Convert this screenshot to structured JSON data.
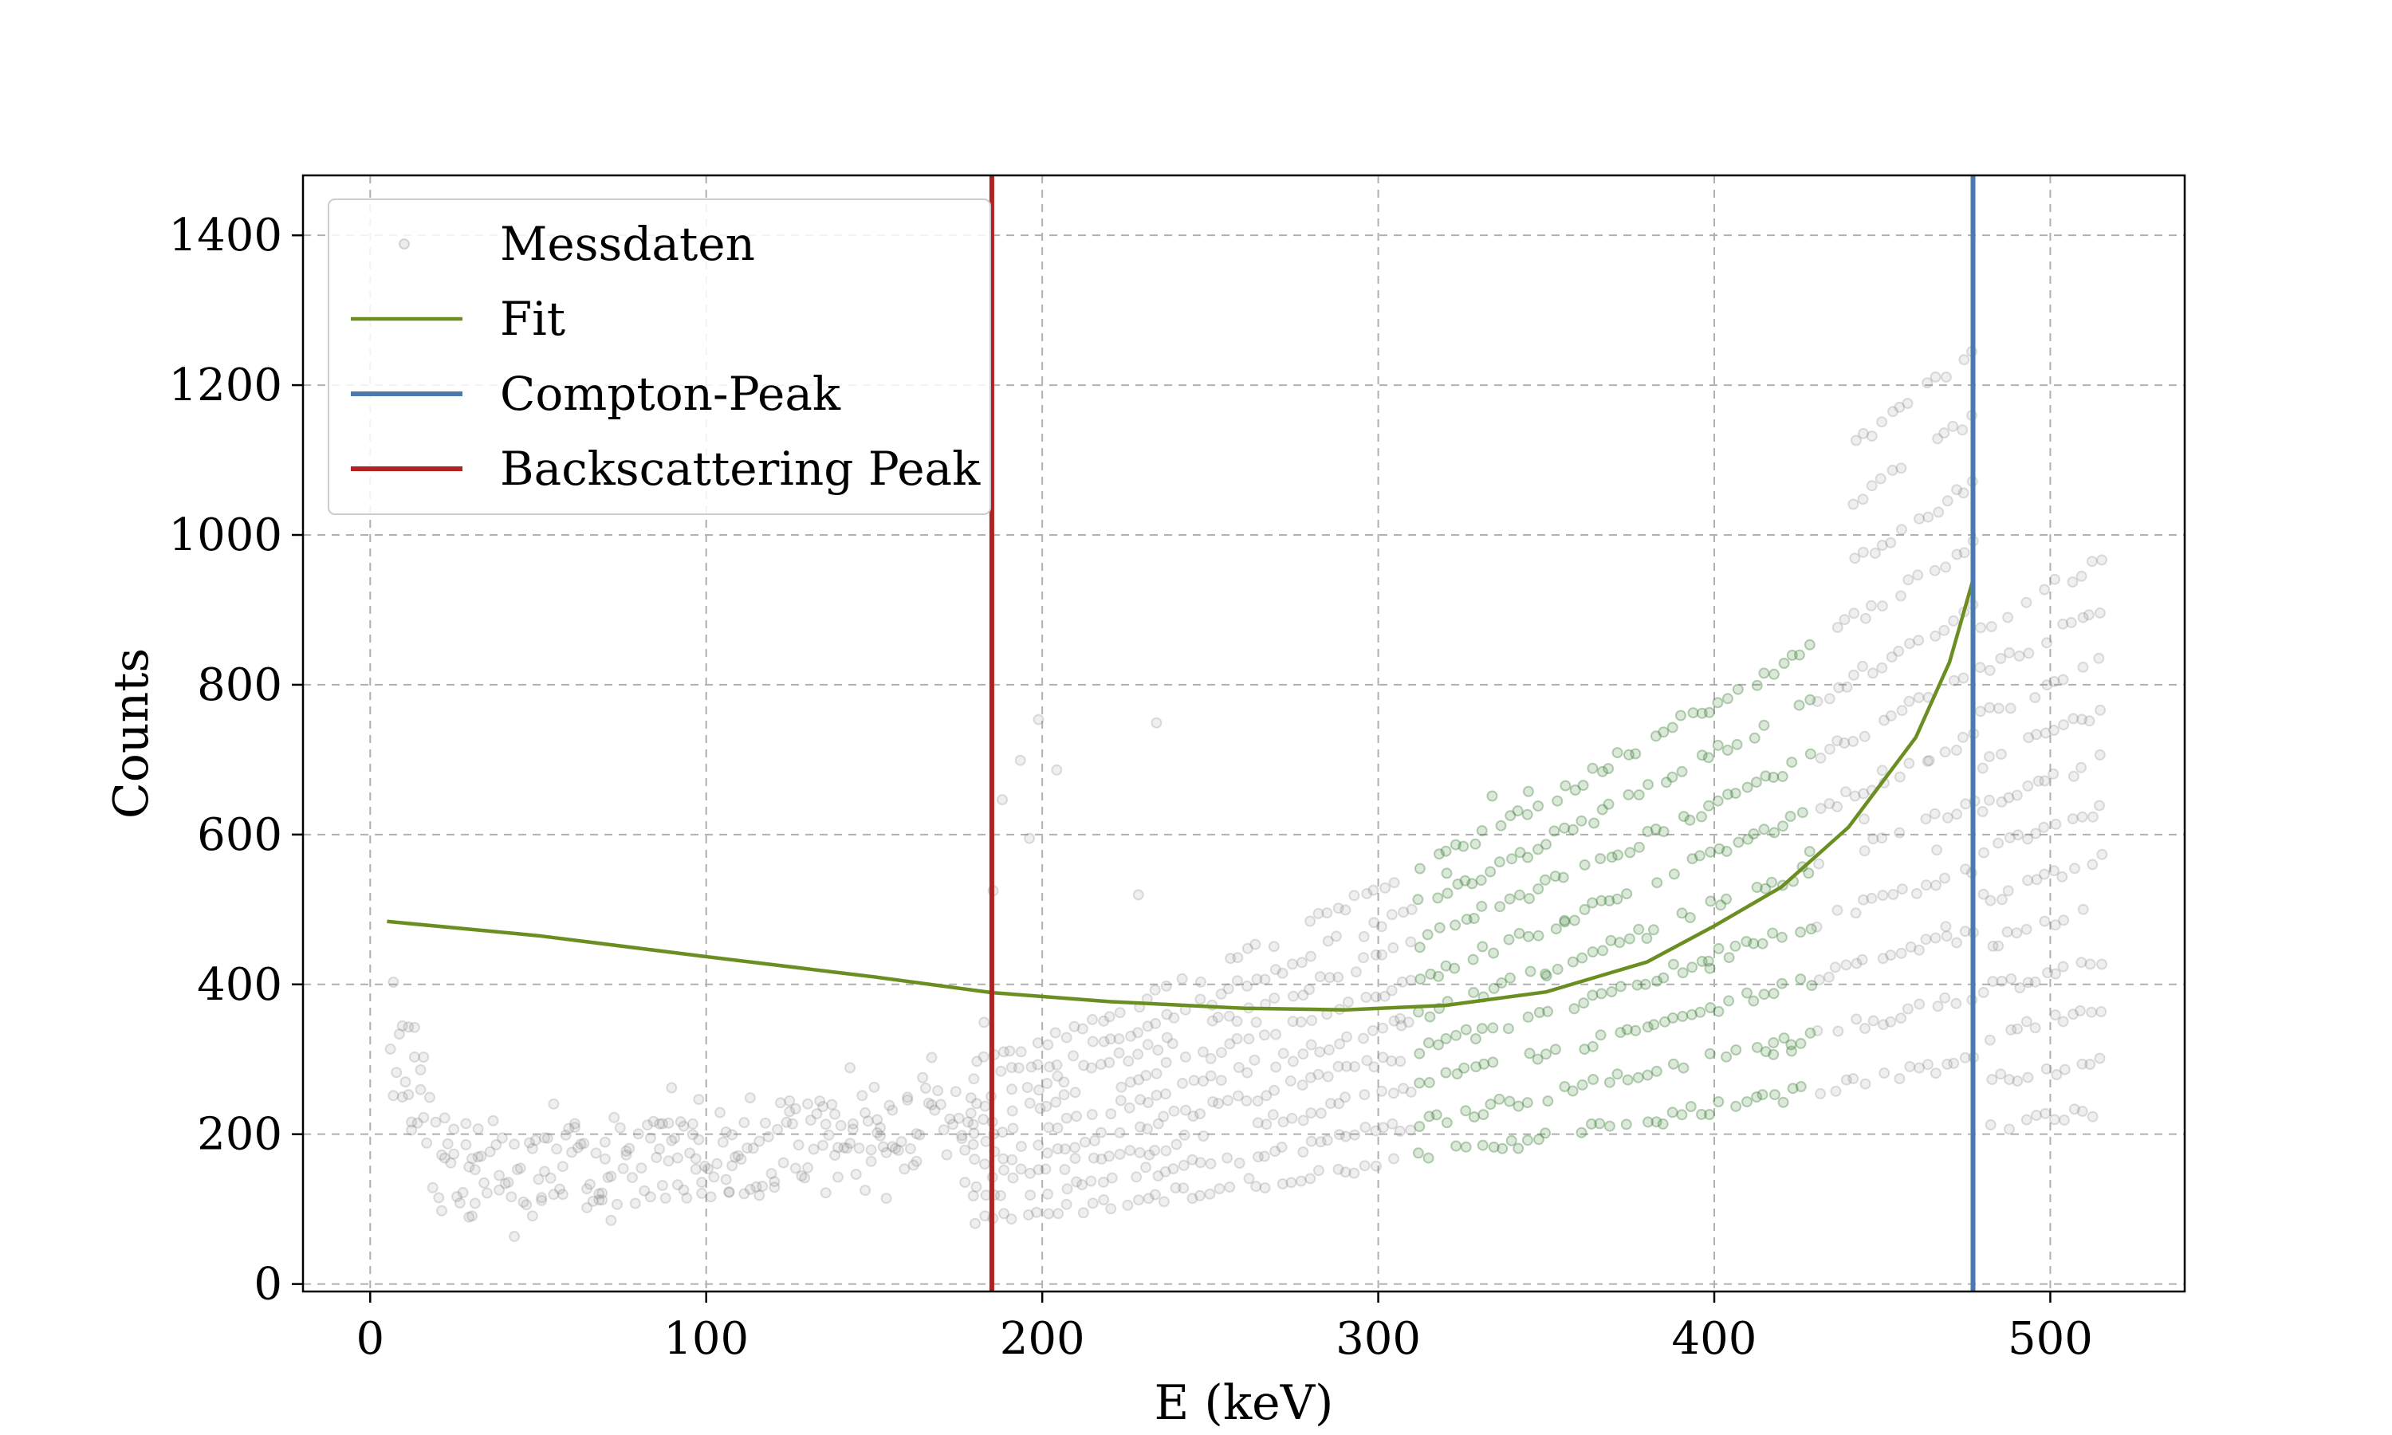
{
  "chart_data": {
    "type": "scatter",
    "title": "",
    "xlabel": "E (keV)",
    "ylabel": "Counts",
    "xlim": [
      -20,
      540
    ],
    "ylim": [
      -10,
      1480
    ],
    "xticks": [
      0,
      100,
      200,
      300,
      400,
      500
    ],
    "yticks": [
      0,
      200,
      400,
      600,
      800,
      1000,
      1200,
      1400
    ],
    "xtick_labels": [
      "0",
      "100",
      "200",
      "300",
      "400",
      "500"
    ],
    "ytick_labels": [
      "0",
      "200",
      "400",
      "600",
      "800",
      "1000",
      "1200",
      "1400"
    ],
    "grid": true,
    "legend_position": "top-left",
    "series": [
      {
        "name": "Messdaten",
        "kind": "scatter",
        "color": "#808080",
        "fit_region_color": "#3a7d34",
        "fit_region": [
          310,
          430
        ],
        "x_range": [
          5,
          515
        ],
        "description_points": [
          [
            5,
            530
          ],
          [
            10,
            380
          ],
          [
            20,
            200
          ],
          [
            40,
            170
          ],
          [
            60,
            170
          ],
          [
            80,
            180
          ],
          [
            100,
            190
          ],
          [
            120,
            210
          ],
          [
            140,
            250
          ],
          [
            160,
            280
          ],
          [
            180,
            320
          ],
          [
            185,
            420
          ],
          [
            200,
            330
          ],
          [
            250,
            280
          ],
          [
            300,
            300
          ],
          [
            350,
            330
          ],
          [
            400,
            380
          ],
          [
            450,
            700
          ],
          [
            470,
            1000
          ],
          [
            480,
            500
          ],
          [
            500,
            330
          ],
          [
            515,
            250
          ]
        ]
      },
      {
        "name": "Fit",
        "kind": "line",
        "color": "#6b8e23",
        "points": [
          [
            5,
            484
          ],
          [
            50,
            465
          ],
          [
            100,
            437
          ],
          [
            150,
            410
          ],
          [
            185,
            389
          ],
          [
            220,
            377
          ],
          [
            260,
            368
          ],
          [
            290,
            366
          ],
          [
            320,
            372
          ],
          [
            350,
            390
          ],
          [
            380,
            430
          ],
          [
            400,
            478
          ],
          [
            420,
            530
          ],
          [
            440,
            610
          ],
          [
            460,
            730
          ],
          [
            470,
            830
          ],
          [
            477,
            940
          ]
        ]
      },
      {
        "name": "Compton-Peak",
        "kind": "vline",
        "color": "#4a7baf",
        "x": 477
      },
      {
        "name": "Backscattering Peak",
        "kind": "vline",
        "color": "#b22222",
        "x": 185
      }
    ]
  }
}
